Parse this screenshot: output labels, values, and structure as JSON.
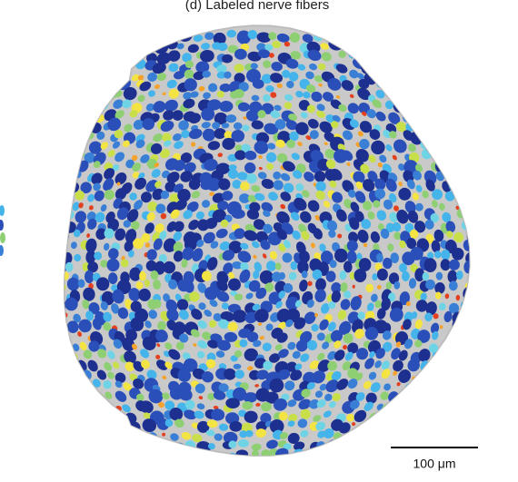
{
  "panel": {
    "title": "(d) Labeled nerve fibers",
    "scale_bar_label": "100 μm"
  }
}
